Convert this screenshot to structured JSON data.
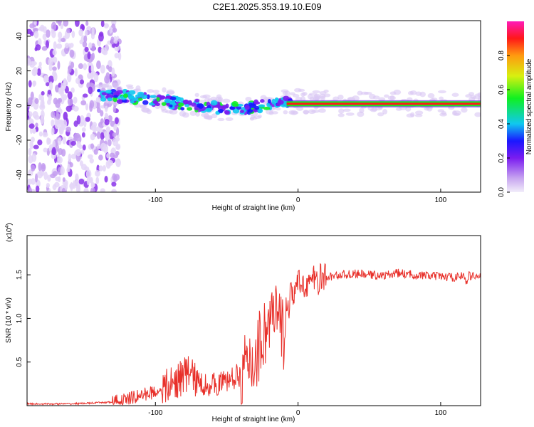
{
  "title": "C2E1.2025.353.19.10.E09",
  "chart_data": [
    {
      "type": "heatmap",
      "xlabel": "Height of straight line (km)",
      "ylabel": "Frequency (Hz)",
      "xlim": [
        -190,
        128
      ],
      "ylim": [
        -50,
        49
      ],
      "xticks": [
        -100,
        0,
        100
      ],
      "yticks": [
        -40,
        -20,
        0,
        20,
        40
      ],
      "colorbar": {
        "label": "Normalized spectral amplitude",
        "range": [
          0,
          1
        ],
        "ticks": [
          "0.0",
          "0.2",
          "0.4",
          "0.6",
          "0.8"
        ]
      },
      "regions": [
        {
          "description": "noise",
          "x": [
            -190,
            -125
          ],
          "y": [
            -50,
            49
          ]
        },
        {
          "description": "signal band",
          "x": [
            -140,
            128
          ],
          "y": [
            -5,
            8
          ]
        }
      ],
      "signal_center_hz": [
        {
          "x": -140,
          "y": 6
        },
        {
          "x": -120,
          "y": 5
        },
        {
          "x": -100,
          "y": 3
        },
        {
          "x": -80,
          "y": 1
        },
        {
          "x": -60,
          "y": -1
        },
        {
          "x": -40,
          "y": -2
        },
        {
          "x": -25,
          "y": 0
        },
        {
          "x": -10,
          "y": 3
        },
        {
          "x": 0,
          "y": 2
        },
        {
          "x": 50,
          "y": 1
        },
        {
          "x": 100,
          "y": 1
        },
        {
          "x": 128,
          "y": 1
        }
      ]
    },
    {
      "type": "line",
      "xlabel": "Height of straight line (km)",
      "ylabel": "SNR (10 * v/v)",
      "y_multiplier": "(x10",
      "y_multiplier_exp": "4",
      "y_multiplier_close": ")",
      "xlim": [
        -190,
        128
      ],
      "ylim": [
        0,
        1.95
      ],
      "xticks": [
        -100,
        0,
        100
      ],
      "yticks": [
        "0.5",
        "1.0",
        "1.5"
      ],
      "color": "#e8302a",
      "series": [
        {
          "name": "SNR",
          "x": [
            -190,
            -160,
            -130,
            -120,
            -110,
            -100,
            -90,
            -80,
            -75,
            -70,
            -60,
            -50,
            -40,
            -35,
            -30,
            -25,
            -20,
            -17,
            -15,
            -12,
            -10,
            -8,
            -5,
            0,
            5,
            10,
            20,
            30,
            40,
            50,
            60,
            70,
            80,
            90,
            100,
            110,
            115,
            118,
            120,
            128
          ],
          "y": [
            0.02,
            0.02,
            0.04,
            0.07,
            0.12,
            0.16,
            0.22,
            0.35,
            0.38,
            0.25,
            0.24,
            0.28,
            0.36,
            0.42,
            0.55,
            0.8,
            0.95,
            1.0,
            0.98,
            0.9,
            0.85,
            1.05,
            1.25,
            1.38,
            1.4,
            1.43,
            1.47,
            1.5,
            1.51,
            1.5,
            1.49,
            1.52,
            1.5,
            1.49,
            1.48,
            1.47,
            1.5,
            1.42,
            1.49,
            1.48
          ]
        }
      ]
    }
  ]
}
